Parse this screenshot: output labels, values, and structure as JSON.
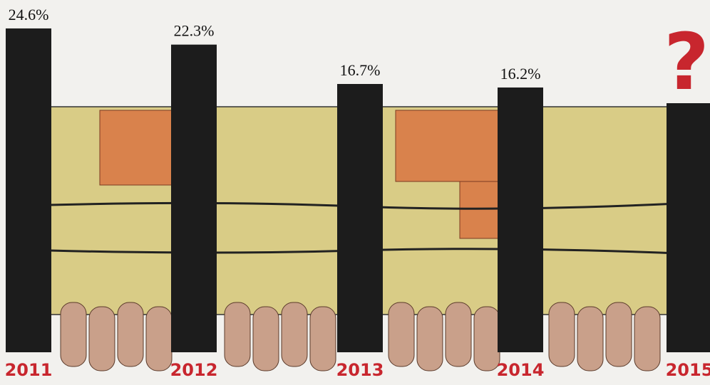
{
  "chart_data": {
    "type": "bar",
    "categories": [
      "2011",
      "2012",
      "2013",
      "2014",
      "2015"
    ],
    "values": [
      24.6,
      22.3,
      16.7,
      16.2,
      null
    ],
    "value_labels": [
      "24.6%",
      "22.3%",
      "16.7%",
      "16.2%",
      "?"
    ],
    "color": "#1c1c1c"
  }
}
